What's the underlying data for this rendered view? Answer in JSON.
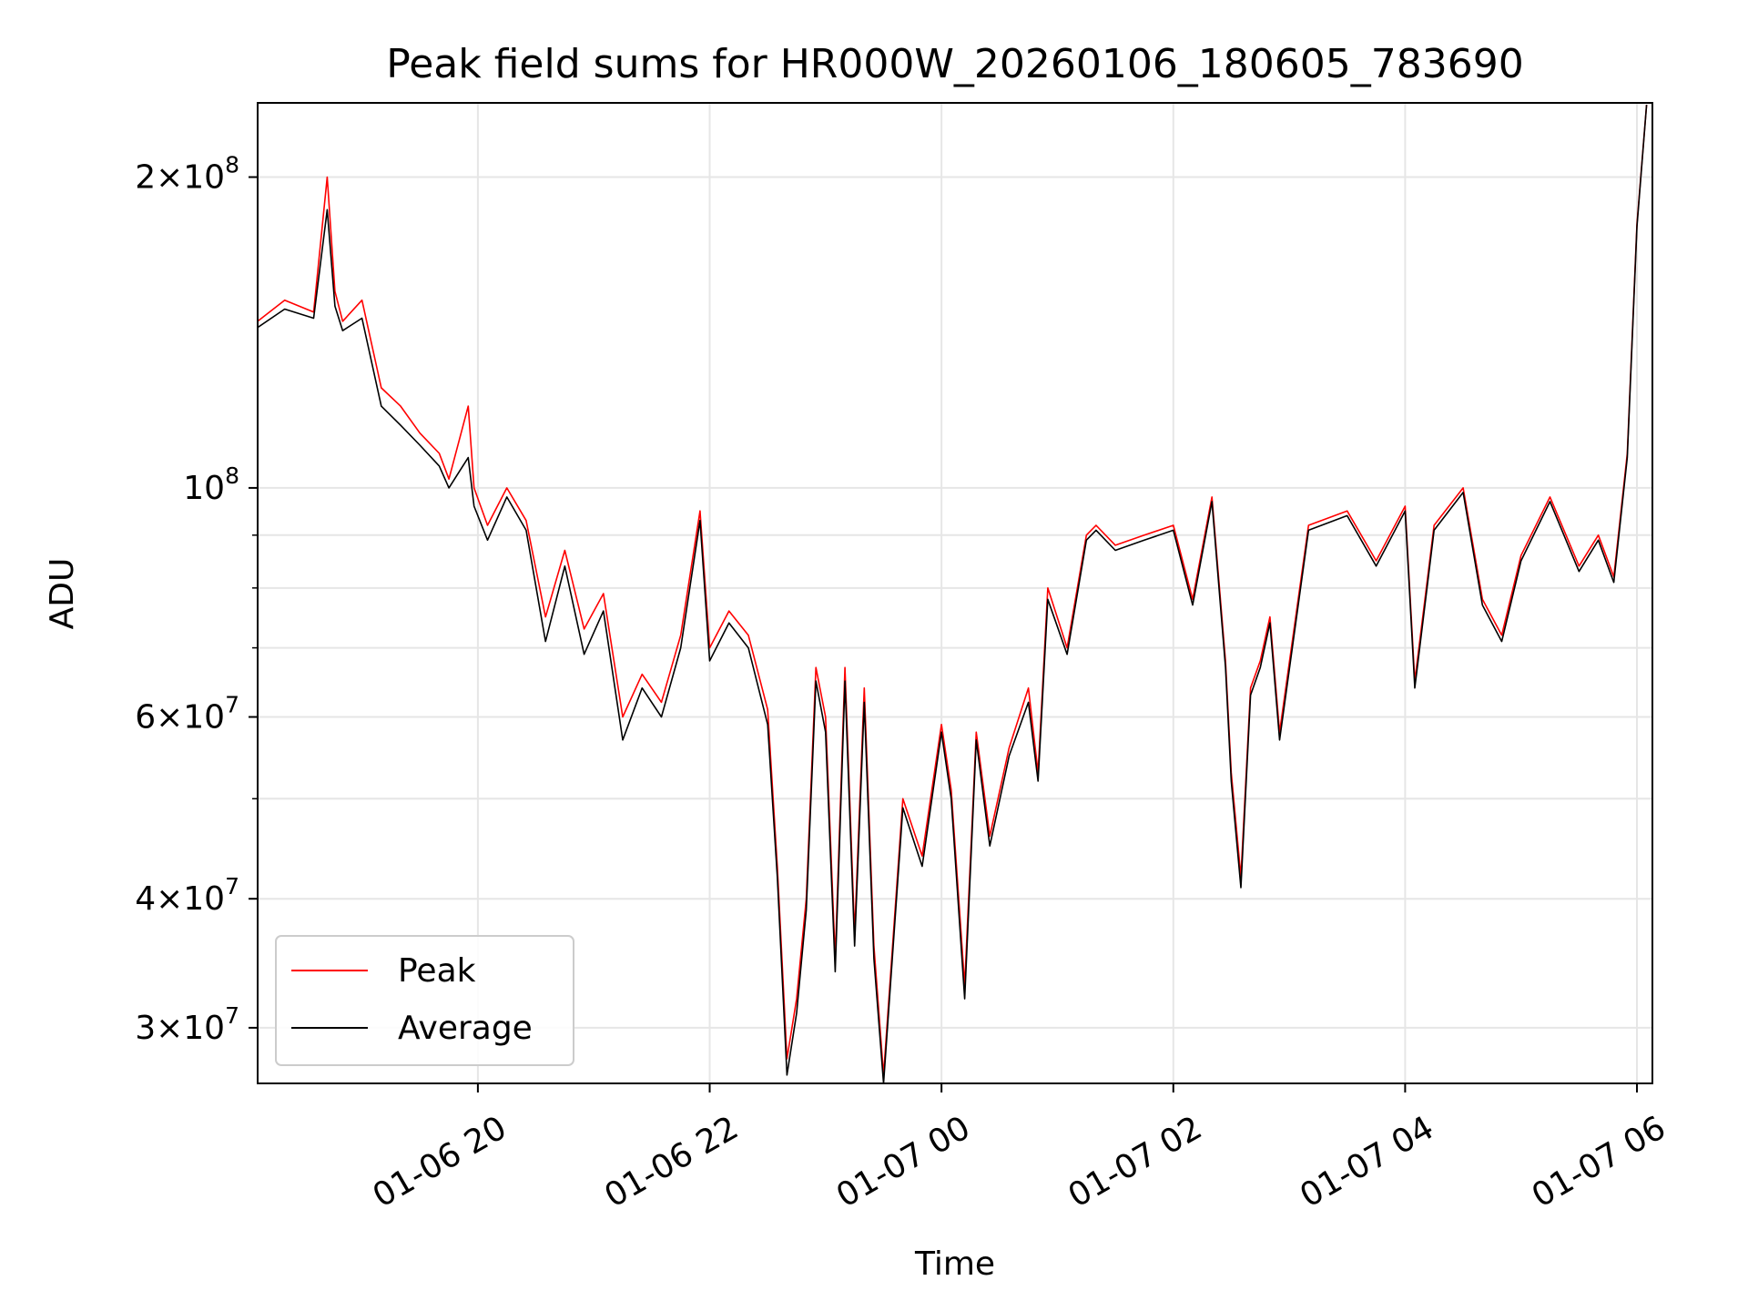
{
  "chart_data": {
    "type": "line",
    "title": "Peak field sums for HR000W_20260106_180605_783690",
    "xlabel": "Time",
    "ylabel": "ADU",
    "y_scale": "log",
    "ylim": [
      26500000,
      236000000
    ],
    "xlim": [
      "2026-01-06 18:06",
      "2026-01-07 06:08"
    ],
    "grid": true,
    "legend_position": "lower-left",
    "x_ticks": [
      {
        "t": "2026-01-06 20:00",
        "label": "01-06 20"
      },
      {
        "t": "2026-01-06 22:00",
        "label": "01-06 22"
      },
      {
        "t": "2026-01-07 00:00",
        "label": "01-07 00"
      },
      {
        "t": "2026-01-07 02:00",
        "label": "01-07 02"
      },
      {
        "t": "2026-01-07 04:00",
        "label": "01-07 04"
      },
      {
        "t": "2026-01-07 06:00",
        "label": "01-07 06"
      }
    ],
    "y_major_ticks": [
      {
        "v": 30000000,
        "mant": "3",
        "exp": "7"
      },
      {
        "v": 40000000,
        "mant": "4",
        "exp": "7"
      },
      {
        "v": 60000000,
        "mant": "6",
        "exp": "7"
      },
      {
        "v": 100000000,
        "mant": "",
        "exp": "8"
      },
      {
        "v": 200000000,
        "mant": "2",
        "exp": "8"
      }
    ],
    "y_minor_ticks": [
      50000000,
      70000000,
      80000000,
      90000000
    ],
    "series": [
      {
        "name": "Peak",
        "color": "#ff0000",
        "x": [
          "2026-01-06 18:06",
          "2026-01-06 18:20",
          "2026-01-06 18:35",
          "2026-01-06 18:42",
          "2026-01-06 18:46",
          "2026-01-06 18:50",
          "2026-01-06 19:00",
          "2026-01-06 19:10",
          "2026-01-06 19:20",
          "2026-01-06 19:30",
          "2026-01-06 19:40",
          "2026-01-06 19:45",
          "2026-01-06 19:55",
          "2026-01-06 19:58",
          "2026-01-06 20:05",
          "2026-01-06 20:15",
          "2026-01-06 20:25",
          "2026-01-06 20:35",
          "2026-01-06 20:45",
          "2026-01-06 20:55",
          "2026-01-06 21:05",
          "2026-01-06 21:15",
          "2026-01-06 21:25",
          "2026-01-06 21:35",
          "2026-01-06 21:45",
          "2026-01-06 21:55",
          "2026-01-06 22:00",
          "2026-01-06 22:10",
          "2026-01-06 22:20",
          "2026-01-06 22:30",
          "2026-01-06 22:35",
          "2026-01-06 22:40",
          "2026-01-06 22:45",
          "2026-01-06 22:50",
          "2026-01-06 22:55",
          "2026-01-06 23:00",
          "2026-01-06 23:05",
          "2026-01-06 23:10",
          "2026-01-06 23:15",
          "2026-01-06 23:20",
          "2026-01-06 23:25",
          "2026-01-06 23:30",
          "2026-01-06 23:40",
          "2026-01-06 23:50",
          "2026-01-07 00:00",
          "2026-01-07 00:05",
          "2026-01-07 00:12",
          "2026-01-07 00:18",
          "2026-01-07 00:25",
          "2026-01-07 00:35",
          "2026-01-07 00:45",
          "2026-01-07 00:50",
          "2026-01-07 00:55",
          "2026-01-07 01:05",
          "2026-01-07 01:15",
          "2026-01-07 01:20",
          "2026-01-07 01:30",
          "2026-01-07 01:45",
          "2026-01-07 02:00",
          "2026-01-07 02:10",
          "2026-01-07 02:20",
          "2026-01-07 02:27",
          "2026-01-07 02:30",
          "2026-01-07 02:35",
          "2026-01-07 02:40",
          "2026-01-07 02:45",
          "2026-01-07 02:50",
          "2026-01-07 02:55",
          "2026-01-07 03:10",
          "2026-01-07 03:30",
          "2026-01-07 03:45",
          "2026-01-07 04:00",
          "2026-01-07 04:05",
          "2026-01-07 04:15",
          "2026-01-07 04:30",
          "2026-01-07 04:40",
          "2026-01-07 04:50",
          "2026-01-07 05:00",
          "2026-01-07 05:15",
          "2026-01-07 05:30",
          "2026-01-07 05:40",
          "2026-01-07 05:48",
          "2026-01-07 05:55",
          "2026-01-07 06:00",
          "2026-01-07 06:05"
        ],
        "y": [
          145000000,
          152000000,
          148000000,
          200000000,
          155000000,
          145000000,
          152000000,
          125000000,
          120000000,
          113000000,
          108000000,
          102000000,
          120000000,
          100000000,
          92000000,
          100000000,
          93000000,
          75000000,
          87000000,
          73000000,
          79000000,
          60000000,
          66000000,
          62000000,
          72000000,
          95000000,
          70000000,
          76000000,
          72000000,
          61000000,
          43000000,
          28000000,
          32000000,
          40000000,
          67000000,
          60000000,
          35000000,
          67000000,
          37000000,
          64000000,
          36000000,
          27000000,
          50000000,
          44000000,
          59000000,
          51000000,
          33000000,
          58000000,
          46000000,
          56000000,
          64000000,
          53000000,
          80000000,
          70000000,
          90000000,
          92000000,
          88000000,
          90000000,
          92000000,
          78000000,
          98000000,
          68000000,
          53000000,
          42000000,
          64000000,
          68000000,
          75000000,
          58000000,
          92000000,
          95000000,
          85000000,
          96000000,
          65000000,
          92000000,
          100000000,
          78000000,
          72000000,
          86000000,
          98000000,
          84000000,
          90000000,
          82000000,
          108000000,
          180000000,
          235000000
        ]
      },
      {
        "name": "Average",
        "color": "#000000",
        "x": [
          "2026-01-06 18:06",
          "2026-01-06 18:20",
          "2026-01-06 18:35",
          "2026-01-06 18:42",
          "2026-01-06 18:46",
          "2026-01-06 18:50",
          "2026-01-06 19:00",
          "2026-01-06 19:10",
          "2026-01-06 19:20",
          "2026-01-06 19:30",
          "2026-01-06 19:40",
          "2026-01-06 19:45",
          "2026-01-06 19:55",
          "2026-01-06 19:58",
          "2026-01-06 20:05",
          "2026-01-06 20:15",
          "2026-01-06 20:25",
          "2026-01-06 20:35",
          "2026-01-06 20:45",
          "2026-01-06 20:55",
          "2026-01-06 21:05",
          "2026-01-06 21:15",
          "2026-01-06 21:25",
          "2026-01-06 21:35",
          "2026-01-06 21:45",
          "2026-01-06 21:55",
          "2026-01-06 22:00",
          "2026-01-06 22:10",
          "2026-01-06 22:20",
          "2026-01-06 22:30",
          "2026-01-06 22:35",
          "2026-01-06 22:40",
          "2026-01-06 22:45",
          "2026-01-06 22:50",
          "2026-01-06 22:55",
          "2026-01-06 23:00",
          "2026-01-06 23:05",
          "2026-01-06 23:10",
          "2026-01-06 23:15",
          "2026-01-06 23:20",
          "2026-01-06 23:25",
          "2026-01-06 23:30",
          "2026-01-06 23:40",
          "2026-01-06 23:50",
          "2026-01-07 00:00",
          "2026-01-07 00:05",
          "2026-01-07 00:12",
          "2026-01-07 00:18",
          "2026-01-07 00:25",
          "2026-01-07 00:35",
          "2026-01-07 00:45",
          "2026-01-07 00:50",
          "2026-01-07 00:55",
          "2026-01-07 01:05",
          "2026-01-07 01:15",
          "2026-01-07 01:20",
          "2026-01-07 01:30",
          "2026-01-07 01:45",
          "2026-01-07 02:00",
          "2026-01-07 02:10",
          "2026-01-07 02:20",
          "2026-01-07 02:27",
          "2026-01-07 02:30",
          "2026-01-07 02:35",
          "2026-01-07 02:40",
          "2026-01-07 02:45",
          "2026-01-07 02:50",
          "2026-01-07 02:55",
          "2026-01-07 03:10",
          "2026-01-07 03:30",
          "2026-01-07 03:45",
          "2026-01-07 04:00",
          "2026-01-07 04:05",
          "2026-01-07 04:15",
          "2026-01-07 04:30",
          "2026-01-07 04:40",
          "2026-01-07 04:50",
          "2026-01-07 05:00",
          "2026-01-07 05:15",
          "2026-01-07 05:30",
          "2026-01-07 05:40",
          "2026-01-07 05:48",
          "2026-01-07 05:55",
          "2026-01-07 06:00",
          "2026-01-07 06:05"
        ],
        "y": [
          143000000,
          149000000,
          146000000,
          186000000,
          150000000,
          142000000,
          146000000,
          120000000,
          115000000,
          110000000,
          105000000,
          100000000,
          107000000,
          96000000,
          89000000,
          98000000,
          91000000,
          71000000,
          84000000,
          69000000,
          76000000,
          57000000,
          64000000,
          60000000,
          70000000,
          93000000,
          68000000,
          74000000,
          70000000,
          59000000,
          42000000,
          27000000,
          31000000,
          39000000,
          65000000,
          58000000,
          34000000,
          65000000,
          36000000,
          62000000,
          35000000,
          26500000,
          49000000,
          43000000,
          58000000,
          50000000,
          32000000,
          57000000,
          45000000,
          55000000,
          62000000,
          52000000,
          78000000,
          69000000,
          89000000,
          91000000,
          87000000,
          89000000,
          91000000,
          77000000,
          97000000,
          67000000,
          52000000,
          41000000,
          63000000,
          67000000,
          74000000,
          57000000,
          91000000,
          94000000,
          84000000,
          95000000,
          64000000,
          91000000,
          99000000,
          77000000,
          71000000,
          85000000,
          97000000,
          83000000,
          89000000,
          81000000,
          107000000,
          179000000,
          235000000
        ]
      }
    ]
  }
}
